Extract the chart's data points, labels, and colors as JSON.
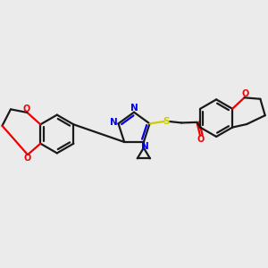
{
  "bg_color": "#ebebeb",
  "bond_color": "#1a1a1a",
  "N_color": "#0000ee",
  "O_color": "#ee0000",
  "S_color": "#cccc00",
  "lw": 1.6,
  "xlim": [
    0,
    10
  ],
  "ylim": [
    0,
    10
  ]
}
